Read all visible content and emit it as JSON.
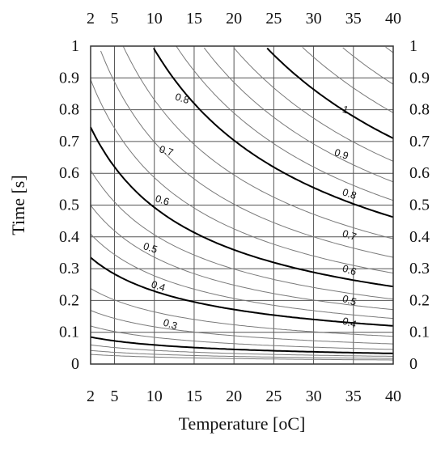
{
  "chart_data": {
    "type": "contour",
    "xlabel": "Temperature [oC]",
    "ylabel": "Time [s]",
    "xlim": [
      2,
      40
    ],
    "ylim": [
      0,
      1
    ],
    "x_ticks": [
      2,
      5,
      10,
      15,
      20,
      25,
      30,
      35,
      40
    ],
    "y_ticks": [
      0,
      0.1,
      0.2,
      0.3,
      0.4,
      0.5,
      0.6,
      0.7,
      0.8,
      0.9,
      1
    ],
    "y_tick_labels": [
      "0",
      "0.1",
      "0.2",
      "0.3",
      "0.4",
      "0.5",
      "0.6",
      "0.7",
      "0.8",
      "0.9",
      "1"
    ],
    "grid": true,
    "ticks_on_all_sides": true,
    "contour_levels": [
      0.05,
      0.1,
      0.15,
      0.2,
      0.25,
      0.3,
      0.35,
      0.4,
      0.45,
      0.5,
      0.55,
      0.6,
      0.65,
      0.7,
      0.75,
      0.8,
      0.85,
      0.9,
      0.95,
      1.0,
      1.05,
      1.1,
      1.15,
      1.2
    ],
    "major_contour_levels": [
      0.2,
      0.4,
      0.6,
      0.8,
      1.0
    ],
    "contours": [
      {
        "level": 0.2,
        "points": [
          [
            2,
            0.085
          ],
          [
            10,
            0.062
          ],
          [
            20,
            0.045
          ],
          [
            30,
            0.034
          ],
          [
            40,
            0.028
          ]
        ]
      },
      {
        "level": 0.4,
        "points": [
          [
            2,
            0.335
          ],
          [
            10,
            0.235
          ],
          [
            20,
            0.175
          ],
          [
            30,
            0.135
          ],
          [
            40,
            0.115
          ]
        ]
      },
      {
        "level": 0.6,
        "points": [
          [
            2,
            0.745
          ],
          [
            10,
            0.53
          ],
          [
            20,
            0.415
          ],
          [
            30,
            0.33
          ],
          [
            40,
            0.262
          ]
        ]
      },
      {
        "level": 0.8,
        "points": [
          [
            10,
            0.99
          ],
          [
            20,
            0.78
          ],
          [
            30,
            0.6
          ],
          [
            40,
            0.455
          ]
        ]
      },
      {
        "level": 1.0,
        "points": [
          [
            27,
            1.0
          ],
          [
            30,
            0.935
          ],
          [
            35,
            0.8
          ],
          [
            40,
            0.71
          ]
        ]
      }
    ],
    "contour_labels": [
      {
        "text": "0.3",
        "x": 12,
        "y": 0.125
      },
      {
        "text": "0.4",
        "x": 10.5,
        "y": 0.245
      },
      {
        "text": "0.5",
        "x": 9.5,
        "y": 0.365
      },
      {
        "text": "0.6",
        "x": 11,
        "y": 0.515
      },
      {
        "text": "0.7",
        "x": 11.5,
        "y": 0.67
      },
      {
        "text": "0.8",
        "x": 13.5,
        "y": 0.835
      },
      {
        "text": "1",
        "x": 34,
        "y": 0.8
      },
      {
        "text": "0.9",
        "x": 33.5,
        "y": 0.66
      },
      {
        "text": "0.8",
        "x": 34.5,
        "y": 0.535
      },
      {
        "text": "0.7",
        "x": 34.5,
        "y": 0.405
      },
      {
        "text": "0.6",
        "x": 34.5,
        "y": 0.295
      },
      {
        "text": "0.5",
        "x": 34.5,
        "y": 0.2
      },
      {
        "text": "0.4",
        "x": 34.5,
        "y": 0.13
      }
    ]
  }
}
